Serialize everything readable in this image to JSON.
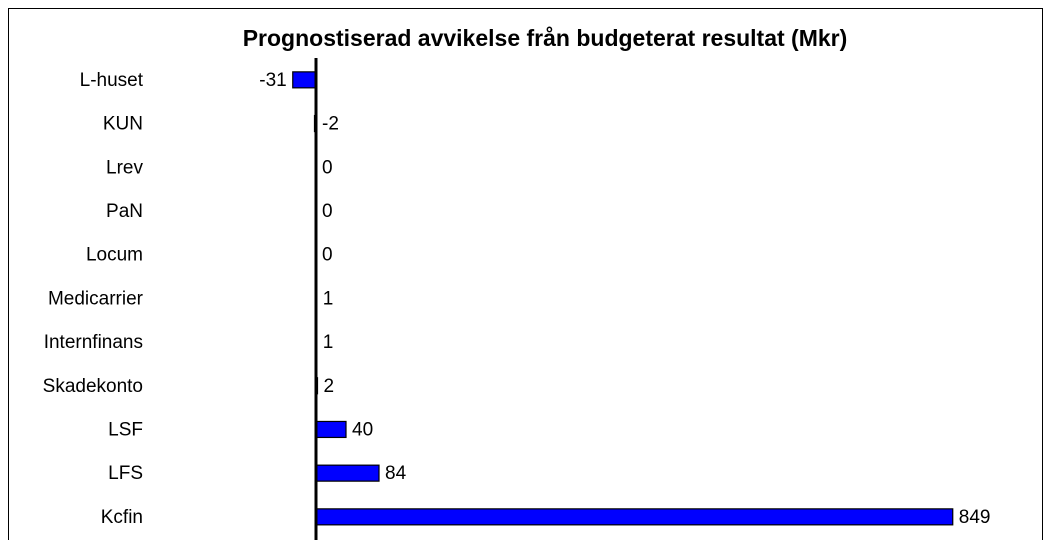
{
  "chart_data": {
    "type": "bar",
    "orientation": "horizontal",
    "title": "Prognostiserad avvikelse från budgeterat resultat (Mkr)",
    "categories": [
      "L-huset",
      "KUN",
      "Lrev",
      "PaN",
      "Locum",
      "Medicarrier",
      "Internfinans",
      "Skadekonto",
      "LSF",
      "LFS",
      "Kcfin"
    ],
    "values": [
      -31,
      -2,
      0,
      0,
      0,
      1,
      1,
      2,
      40,
      84,
      849
    ],
    "color": "#0000ff",
    "xlim": [
      -420,
      900
    ]
  }
}
